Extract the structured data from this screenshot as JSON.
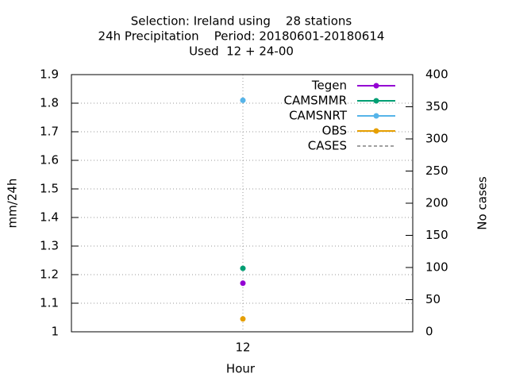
{
  "chart_data": {
    "type": "line",
    "title": [
      "Selection: Ireland using    28 stations",
      "24h Precipitation    Period: 20180601-20180614",
      "Used  12 + 24-00"
    ],
    "xlabel": "Hour",
    "ylabel": "mm/24h",
    "y2label": "No cases",
    "categories": [
      "12"
    ],
    "series": [
      {
        "name": "Tegen",
        "color": "#9400d3",
        "values": [
          1.17
        ]
      },
      {
        "name": "CAMSMMR",
        "color": "#009e73",
        "values": [
          1.222
        ]
      },
      {
        "name": "CAMSNRT",
        "color": "#56b4e9",
        "values": [
          1.81
        ]
      },
      {
        "name": "OBS",
        "color": "#e69f00",
        "values": [
          1.045
        ]
      },
      {
        "name": "CASES",
        "color": "#a0a0a0",
        "axis": "y2",
        "dashed": true,
        "values": [
          null
        ]
      }
    ],
    "ylim": [
      1,
      1.9
    ],
    "yticks": [
      1,
      1.1,
      1.2,
      1.3,
      1.4,
      1.5,
      1.6,
      1.7,
      1.8,
      1.9
    ],
    "y2lim": [
      0,
      400
    ],
    "y2ticks": [
      0,
      50,
      100,
      150,
      200,
      250,
      300,
      350,
      400
    ],
    "grid": true,
    "legend": "top-right"
  }
}
